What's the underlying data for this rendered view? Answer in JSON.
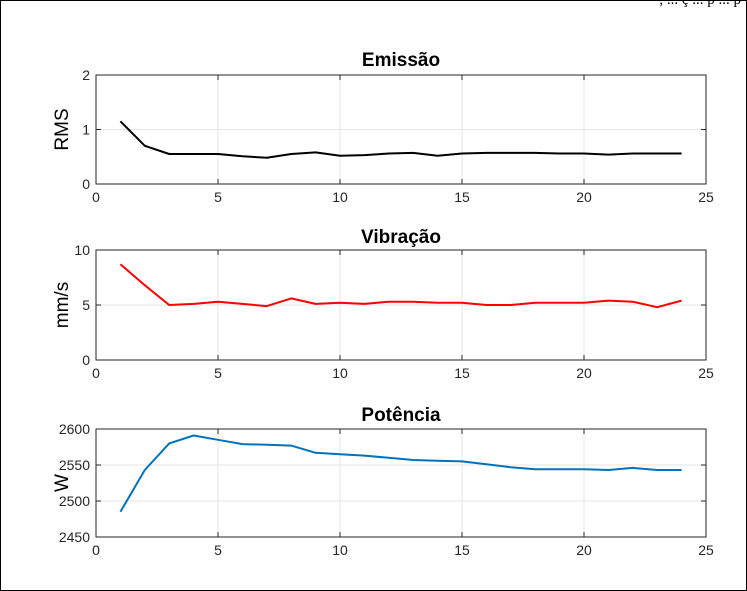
{
  "caption_fragment": ", ... ç ... p ... p",
  "chart_data": [
    {
      "type": "line",
      "title": "Emissão",
      "xlabel": "",
      "ylabel": "RMS",
      "xlim": [
        0,
        25
      ],
      "ylim": [
        0,
        2
      ],
      "xticks": [
        "0",
        "5",
        "10",
        "15",
        "20",
        "25"
      ],
      "yticks": [
        "0",
        "1",
        "2"
      ],
      "grid": true,
      "color": "#000000",
      "series": [
        {
          "x": [
            1,
            2,
            3,
            4,
            5,
            6,
            7,
            8,
            9,
            10,
            11,
            12,
            13,
            14,
            15,
            16,
            17,
            18,
            19,
            20,
            21,
            22,
            23,
            24
          ],
          "y": [
            1.15,
            0.7,
            0.55,
            0.55,
            0.55,
            0.51,
            0.48,
            0.55,
            0.58,
            0.52,
            0.53,
            0.56,
            0.57,
            0.52,
            0.56,
            0.57,
            0.57,
            0.57,
            0.56,
            0.56,
            0.54,
            0.56,
            0.56,
            0.56
          ]
        }
      ]
    },
    {
      "type": "line",
      "title": "Vibração",
      "xlabel": "",
      "ylabel": "mm/s",
      "xlim": [
        0,
        25
      ],
      "ylim": [
        0,
        10
      ],
      "xticks": [
        "0",
        "5",
        "10",
        "15",
        "20",
        "25"
      ],
      "yticks": [
        "0",
        "5",
        "10"
      ],
      "grid": true,
      "color": "#ff0000",
      "series": [
        {
          "x": [
            1,
            2,
            3,
            4,
            5,
            6,
            7,
            8,
            9,
            10,
            11,
            12,
            13,
            14,
            15,
            16,
            17,
            18,
            19,
            20,
            21,
            22,
            23,
            24
          ],
          "y": [
            8.7,
            6.8,
            5.0,
            5.1,
            5.3,
            5.1,
            4.9,
            5.6,
            5.1,
            5.2,
            5.1,
            5.3,
            5.3,
            5.2,
            5.2,
            5.0,
            5.0,
            5.2,
            5.2,
            5.2,
            5.4,
            5.3,
            4.8,
            5.4
          ]
        }
      ]
    },
    {
      "type": "line",
      "title": "Potência",
      "xlabel": "",
      "ylabel": "W",
      "xlim": [
        0,
        25
      ],
      "ylim": [
        2450,
        2600
      ],
      "xticks": [
        "0",
        "5",
        "10",
        "15",
        "20",
        "25"
      ],
      "yticks": [
        "2450",
        "2500",
        "2550",
        "2600"
      ],
      "grid": true,
      "color": "#0072bd",
      "series": [
        {
          "x": [
            1,
            2,
            3,
            4,
            5,
            6,
            7,
            8,
            9,
            10,
            11,
            12,
            13,
            14,
            15,
            16,
            17,
            18,
            19,
            20,
            21,
            22,
            23,
            24
          ],
          "y": [
            2485,
            2543,
            2580,
            2591,
            2585,
            2579,
            2578,
            2577,
            2567,
            2565,
            2563,
            2560,
            2557,
            2556,
            2555,
            2551,
            2547,
            2544,
            2544,
            2544,
            2543,
            2546,
            2543,
            2543
          ]
        }
      ]
    }
  ]
}
